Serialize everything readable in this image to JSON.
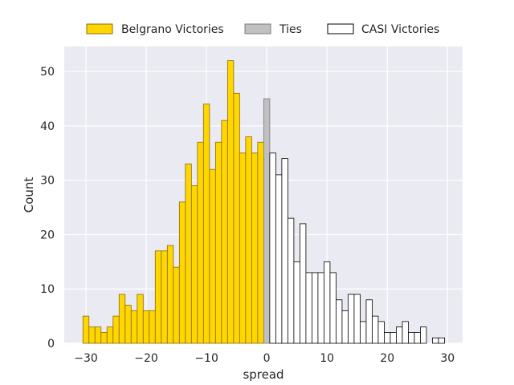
{
  "chart_data": {
    "type": "bar",
    "xlabel": "spread",
    "ylabel": "Count",
    "xlim": [
      -33.6,
      32.5
    ],
    "ylim": [
      0,
      54.6
    ],
    "x_ticks": [
      -30,
      -20,
      -10,
      0,
      10,
      20,
      30
    ],
    "y_ticks": [
      0,
      10,
      20,
      30,
      40,
      50
    ],
    "grid": true,
    "legend_position": "top-center",
    "bin_width": 1,
    "series": [
      {
        "name": "Belgrano Victories",
        "color": "#ffd700",
        "edge_color": "#8b6914",
        "x": [
          -30,
          -29,
          -28,
          -27,
          -26,
          -25,
          -24,
          -23,
          -22,
          -21,
          -20,
          -19,
          -18,
          -17,
          -16,
          -15,
          -14,
          -13,
          -12,
          -11,
          -10,
          -9,
          -8,
          -7,
          -6,
          -5,
          -4,
          -3,
          -2,
          -1
        ],
        "values": [
          5,
          3,
          3,
          2,
          3,
          5,
          9,
          7,
          6,
          9,
          6,
          6,
          17,
          17,
          18,
          14,
          26,
          33,
          29,
          37,
          44,
          32,
          37,
          41,
          52,
          46,
          35,
          38,
          35,
          37
        ]
      },
      {
        "name": "Ties",
        "color": "#c0c0c0",
        "edge_color": "#7a7a7a",
        "x": [
          0
        ],
        "values": [
          45
        ]
      },
      {
        "name": "CASI Victories",
        "color": "#ffffff",
        "edge_color": "#000000",
        "x": [
          1,
          2,
          3,
          4,
          5,
          6,
          7,
          8,
          9,
          10,
          11,
          12,
          13,
          14,
          15,
          16,
          17,
          18,
          19,
          20,
          21,
          22,
          23,
          24,
          25,
          26,
          27,
          28,
          29
        ],
        "values": [
          35,
          31,
          34,
          23,
          15,
          22,
          13,
          13,
          13,
          15,
          13,
          8,
          6,
          9,
          9,
          4,
          8,
          5,
          4,
          2,
          2,
          3,
          4,
          2,
          2,
          3,
          0,
          1,
          1
        ]
      }
    ]
  }
}
